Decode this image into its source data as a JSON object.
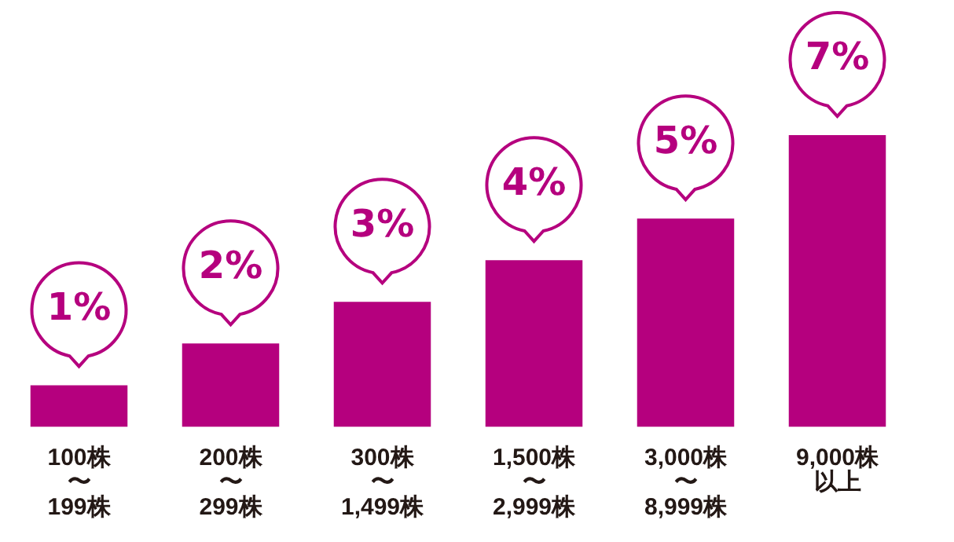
{
  "chart_data": {
    "type": "bar",
    "categories": [
      "100株〜199株",
      "200株〜299株",
      "300株〜1,499株",
      "1,500株〜2,999株",
      "3,000株〜8,999株",
      "9,000株以上"
    ],
    "values": [
      1,
      2,
      3,
      4,
      5,
      7
    ],
    "color": "#b5007e",
    "value_labels": [
      "1%",
      "2%",
      "3%",
      "4%",
      "5%",
      "7%"
    ],
    "tick_labels": "x",
    "grid": false,
    "legend": false
  }
}
